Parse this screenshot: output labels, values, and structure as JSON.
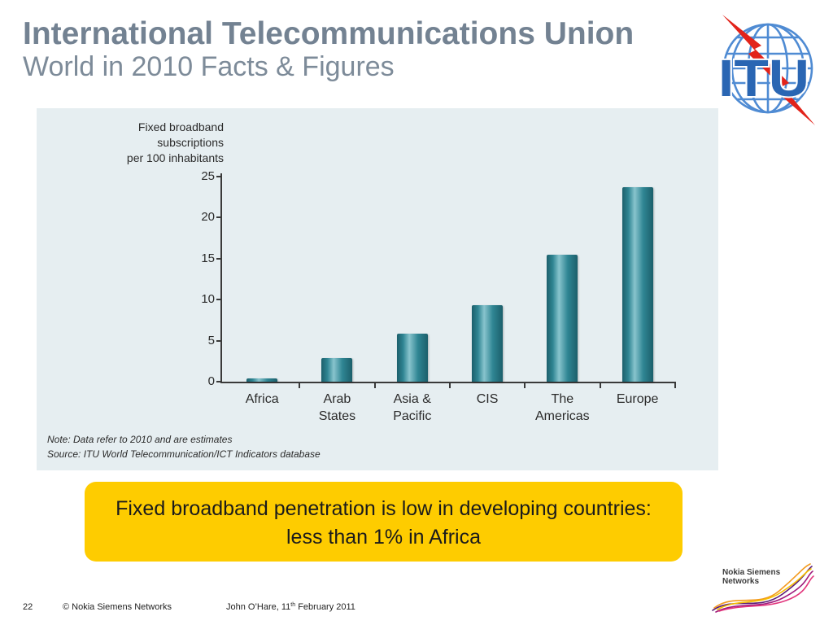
{
  "theme": {
    "title_color": "#738292",
    "subtitle_color": "#7d8b99",
    "chart_panel_bg": "#e6eef1",
    "callout_bg": "#fecc00",
    "bar_color": "#2f8593",
    "bar_highlight": "#88c4cd",
    "bar_shade": "#1c5f6b"
  },
  "slide": {
    "title": "International Telecommunications Union",
    "subtitle": "World in 2010 Facts & Figures"
  },
  "logos": {
    "itu": {
      "text": "ITU",
      "icon": "itu-globe-lightning-logo"
    },
    "nsn": {
      "line1": "Nokia Siemens",
      "line2": "Networks",
      "icon": "nsn-wave-logo"
    }
  },
  "chart_data": {
    "type": "bar",
    "categories": [
      "Africa",
      "Arab States",
      "Asia & Pacific",
      "CIS",
      "The Americas",
      "Europe"
    ],
    "values": [
      0.4,
      2.9,
      5.9,
      9.3,
      15.5,
      23.7
    ],
    "ylabel": [
      "Fixed broadband",
      "subscriptions",
      "per 100 inhabitants"
    ],
    "ylim": [
      0,
      25
    ],
    "yticks": [
      0,
      5,
      10,
      15,
      20,
      25
    ],
    "grid": false,
    "notes": [
      "Note: Data refer to 2010 and are estimates",
      "Source: ITU World Telecommunication/ICT Indicators database"
    ]
  },
  "callout": {
    "lines": [
      "Fixed broadband penetration is low in developing countries:",
      "less than 1% in Africa"
    ]
  },
  "footer": {
    "page_number": "22",
    "copyright": "© Nokia Siemens Networks",
    "author": "John O’Hare,",
    "day": "11",
    "day_suffix": "th",
    "month_year": "February 2011"
  }
}
